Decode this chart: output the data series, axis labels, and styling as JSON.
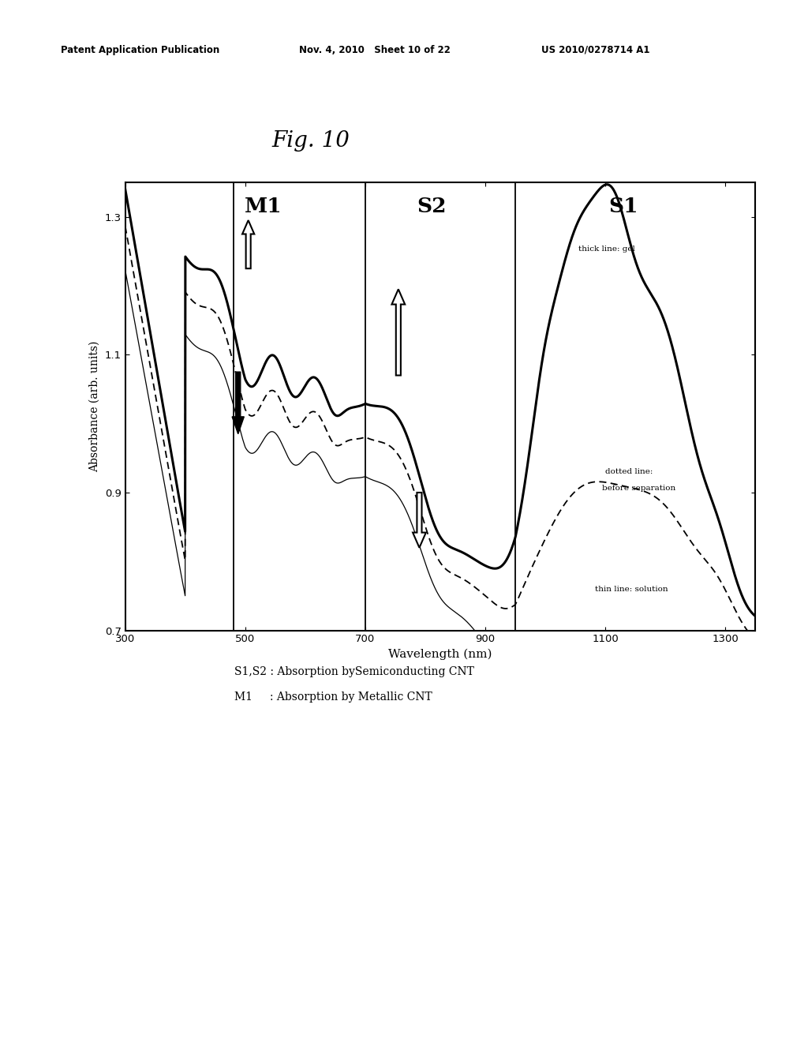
{
  "title": "Fig. 10",
  "xlabel": "Wavelength (nm)",
  "ylabel": "Absorbance (arb. units)",
  "xlim": [
    300,
    1350
  ],
  "ylim": [
    0.7,
    1.35
  ],
  "yticks": [
    0.7,
    0.9,
    1.1,
    1.3
  ],
  "xticks": [
    300,
    500,
    700,
    900,
    1100,
    1300
  ],
  "vline1": 480,
  "vline2": 700,
  "vline3": 950,
  "header_left": "Patent Application Publication",
  "header_mid": "Nov. 4, 2010   Sheet 10 of 22",
  "header_right": "US 2010/0278714 A1",
  "caption_line1": "S1,S2 : Absorption bySemiconducting CNT",
  "caption_line2": "M1     : Absorption by Metallic CNT",
  "background_color": "#ffffff"
}
